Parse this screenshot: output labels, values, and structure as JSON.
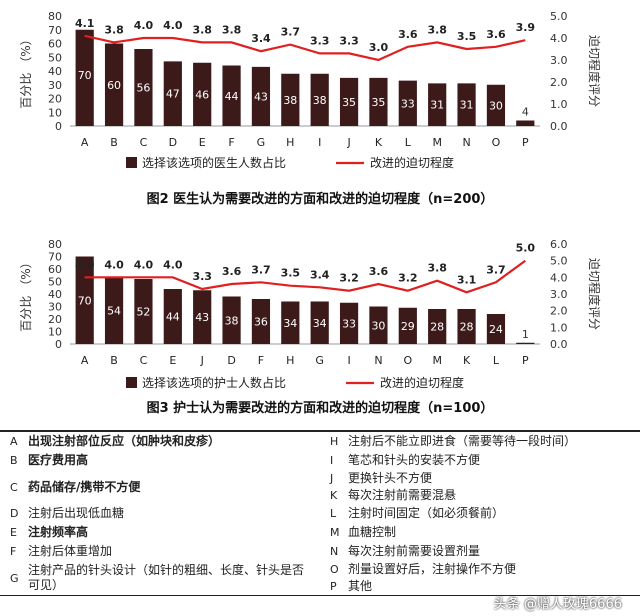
{
  "chart_data": [
    {
      "type": "bar",
      "categories": [
        "A",
        "B",
        "C",
        "D",
        "E",
        "F",
        "G",
        "H",
        "I",
        "J",
        "K",
        "L",
        "M",
        "N",
        "O",
        "P"
      ],
      "series": [
        {
          "name": "选择该选项的医生人数占比",
          "type": "bar",
          "axis": "left",
          "values": [
            70,
            60,
            56,
            47,
            46,
            44,
            43,
            38,
            38,
            35,
            35,
            33,
            31,
            31,
            30,
            4
          ]
        },
        {
          "name": "改进的迫切程度",
          "type": "line",
          "axis": "right",
          "values": [
            4.1,
            3.8,
            4.0,
            4.0,
            3.8,
            3.8,
            3.4,
            3.7,
            3.3,
            3.3,
            3.0,
            3.6,
            3.8,
            3.5,
            3.6,
            3.9
          ]
        }
      ],
      "ylabel": "百分比 （%）",
      "y2label": "迫切程度评分",
      "ylim": [
        0,
        80
      ],
      "yticks": [
        0,
        10,
        20,
        30,
        40,
        50,
        60,
        70,
        80
      ],
      "y2lim": [
        0,
        5
      ],
      "y2ticks": [
        "0.0",
        "1.0",
        "2.0",
        "3.0",
        "4.0",
        "5.0"
      ],
      "caption": "图2 医生认为需要改进的方面和改进的迫切程度（n=200）",
      "colors": {
        "bar": "#3d1a1a",
        "line": "#e02020"
      }
    },
    {
      "type": "bar",
      "categories": [
        "A",
        "B",
        "C",
        "E",
        "J",
        "D",
        "F",
        "H",
        "G",
        "I",
        "N",
        "O",
        "M",
        "K",
        "L",
        "P"
      ],
      "series": [
        {
          "name": "选择该选项的护士人数占比",
          "type": "bar",
          "axis": "left",
          "values": [
            70,
            54,
            52,
            44,
            43,
            38,
            36,
            34,
            34,
            33,
            30,
            29,
            28,
            28,
            24,
            1
          ]
        },
        {
          "name": "改进的迫切程度",
          "type": "line",
          "axis": "right",
          "values": [
            4.0,
            4.0,
            4.0,
            4.0,
            3.3,
            3.6,
            3.7,
            3.5,
            3.4,
            3.2,
            3.6,
            3.2,
            3.8,
            3.1,
            3.7,
            5.0
          ]
        }
      ],
      "ylabel": "百分比 （%）",
      "y2label": "迫切程度评分",
      "ylim": [
        0,
        80
      ],
      "yticks": [
        0,
        10,
        20,
        30,
        40,
        50,
        60,
        70,
        80
      ],
      "y2lim": [
        0,
        6
      ],
      "y2ticks": [
        "0.0",
        "1.0",
        "2.0",
        "3.0",
        "4.0",
        "5.0",
        "6.0"
      ],
      "caption": "图3 护士认为需要改进的方面和改进的迫切程度（n=100）",
      "colors": {
        "bar": "#3d1a1a",
        "line": "#e02020"
      }
    }
  ],
  "legend_table": {
    "rows": [
      {
        "left": {
          "key": "A",
          "text": "出现注射部位反应（如肿块和皮疹）",
          "bold": true
        },
        "right": {
          "key": "H",
          "text": "注射后不能立即进食（需要等待一段时间）",
          "bold": false
        }
      },
      {
        "left": {
          "key": "B",
          "text": "医疗费用高",
          "bold": true
        },
        "right": {
          "key": "I",
          "text": "笔芯和针头的安装不方便",
          "bold": false
        }
      },
      {
        "left": {
          "key": "C",
          "text": "药品储存/携带不方便",
          "bold": true
        },
        "right": {
          "key": "J",
          "text": "更换针头不方便",
          "bold": false
        },
        "right2": {
          "key": "K",
          "text": "每次注射前需要混悬",
          "bold": false
        }
      },
      {
        "left": {
          "key": "D",
          "text": "注射后出现低血糖",
          "bold": false
        },
        "right": {
          "key": "L",
          "text": "注射时间固定（如必须餐前）",
          "bold": false
        }
      },
      {
        "left": {
          "key": "E",
          "text": "注射频率高",
          "bold": true
        },
        "right": {
          "key": "M",
          "text": "血糖控制",
          "bold": false
        }
      },
      {
        "left": {
          "key": "F",
          "text": "注射后体重增加",
          "bold": false
        },
        "right": {
          "key": "N",
          "text": "每次注射前需要设置剂量",
          "bold": false
        }
      },
      {
        "left": {
          "key": "G",
          "text": "注射产品的针头设计（如针的粗细、长度、针头是否可见）",
          "bold": false
        },
        "right": {
          "key": "O",
          "text": "剂量设置好后，注射操作不方便",
          "bold": false
        },
        "right2": {
          "key": "P",
          "text": "其他",
          "bold": false
        }
      }
    ]
  },
  "watermark": "头条 @赠人玫瑰6666"
}
